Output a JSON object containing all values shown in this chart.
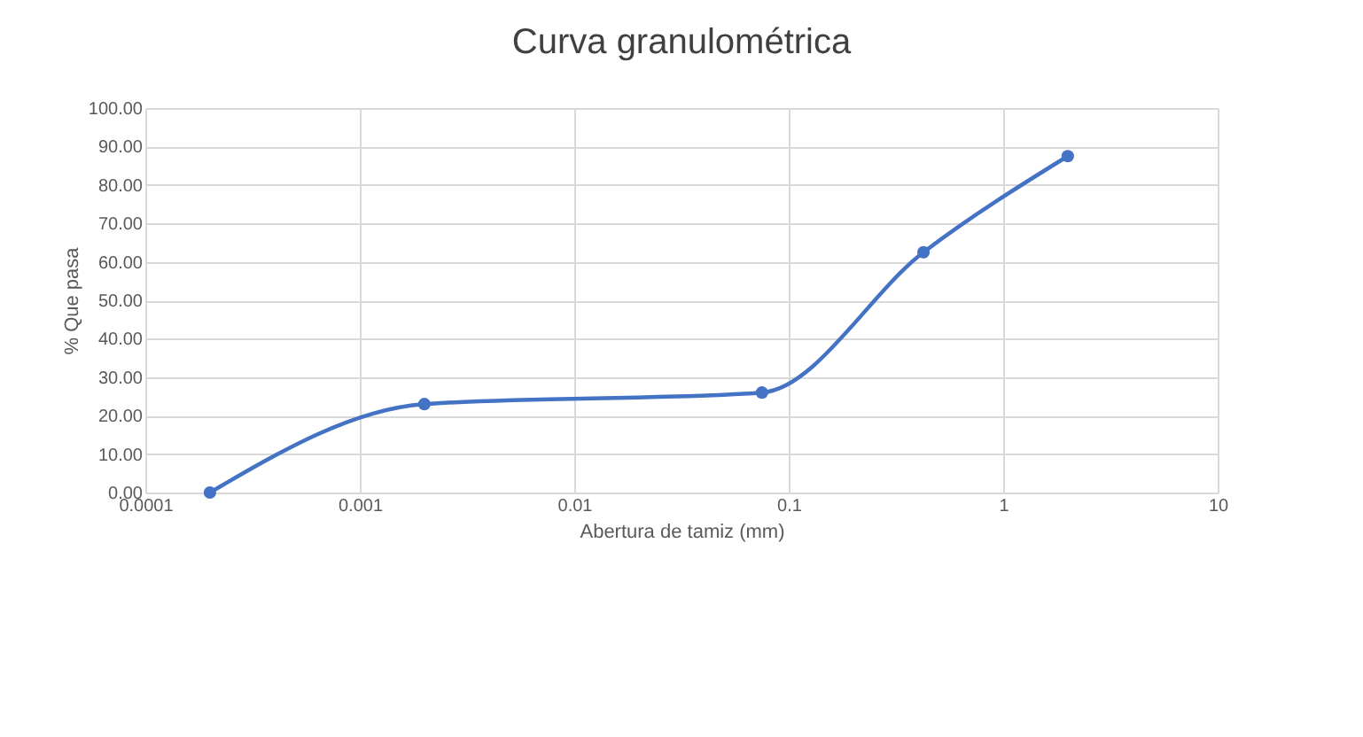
{
  "chart_data": {
    "type": "line",
    "title": "Curva granulométrica",
    "xlabel": "Abertura de tamiz (mm)",
    "ylabel": "% Que pasa",
    "x": [
      0.0002,
      0.002,
      0.075,
      0.425,
      2
    ],
    "series": [
      {
        "color": "#4472c4",
        "values": [
          0,
          23,
          26,
          62.5,
          87.5
        ]
      }
    ],
    "log": "x",
    "xlim": [
      0.0001,
      10
    ],
    "xticks": [
      0.0001,
      0.001,
      0.01,
      0.1,
      1,
      10
    ],
    "ylim": [
      0,
      100
    ],
    "yticks": [
      {
        "value": 0,
        "label": "0.00"
      },
      {
        "value": 10,
        "label": "10.00"
      },
      {
        "value": 20,
        "label": "20.00"
      },
      {
        "value": 30,
        "label": "30.00"
      },
      {
        "value": 40,
        "label": "40.00"
      },
      {
        "value": 50,
        "label": "50.00"
      },
      {
        "value": 60,
        "label": "60.00"
      },
      {
        "value": 70,
        "label": "70.00"
      },
      {
        "value": 80,
        "label": "80.00"
      },
      {
        "value": 90,
        "label": "90.00"
      },
      {
        "value": 100,
        "label": "100.00"
      }
    ],
    "grid": true,
    "marker": "circle",
    "line_style": "solid"
  }
}
